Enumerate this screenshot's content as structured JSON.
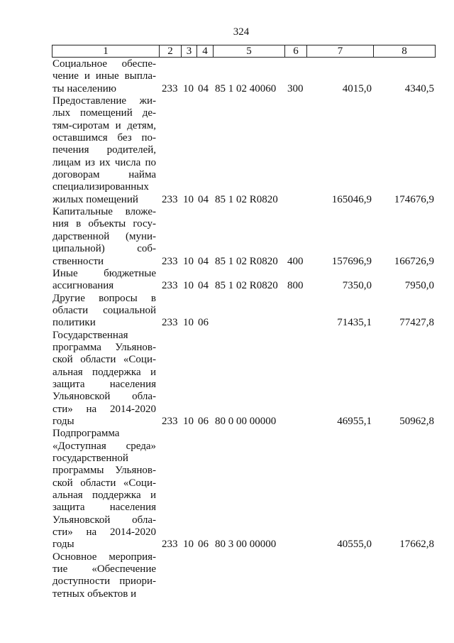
{
  "page_number": "324",
  "columns": [
    "1",
    "2",
    "3",
    "4",
    "5",
    "6",
    "7",
    "8"
  ],
  "rows": [
    {
      "lines": [
        "Социальное обеспе-",
        "чение и иные выпла-",
        "ты населению"
      ],
      "c2": "233",
      "c3": "10",
      "c4": "04",
      "c5": "85 1 02 40060",
      "c6": "300",
      "c7": "4015,0",
      "c8": "4340,5"
    },
    {
      "lines": [
        "Предоставление жи-",
        "лых помещений де-",
        "тям-сиротам и детям,",
        "оставшимся без по-",
        "печения родителей,",
        "лицам из их числа по",
        "договорам найма",
        "специализированных",
        "жилых помещений"
      ],
      "c2": "233",
      "c3": "10",
      "c4": "04",
      "c5": "85 1 02 R0820",
      "c6": "",
      "c7": "165046,9",
      "c8": "174676,9"
    },
    {
      "lines": [
        "Капитальные вложе-",
        "ния в объекты госу-",
        "дарственной (муни-",
        "ципальной) соб-",
        "ственности"
      ],
      "c2": "233",
      "c3": "10",
      "c4": "04",
      "c5": "85 1 02 R0820",
      "c6": "400",
      "c7": "157696,9",
      "c8": "166726,9"
    },
    {
      "lines": [
        "Иные бюджетные",
        "ассигнования"
      ],
      "c2": "233",
      "c3": "10",
      "c4": "04",
      "c5": "85 1 02 R0820",
      "c6": "800",
      "c7": "7350,0",
      "c8": "7950,0"
    },
    {
      "lines": [
        "Другие вопросы в",
        "области социальной",
        "политики"
      ],
      "c2": "233",
      "c3": "10",
      "c4": "06",
      "c5": "",
      "c6": "",
      "c7": "71435,1",
      "c8": "77427,8"
    },
    {
      "lines": [
        "Государственная",
        "программа Ульянов-",
        "ской области «Соци-",
        "альная поддержка и",
        "защита населения",
        "Ульяновской обла-",
        "сти» на 2014-2020",
        "годы"
      ],
      "c2": "233",
      "c3": "10",
      "c4": "06",
      "c5": "80 0 00 00000",
      "c6": "",
      "c7": "46955,1",
      "c8": "50962,8"
    },
    {
      "lines": [
        "Подпрограмма",
        "«Доступная среда»",
        "государственной",
        "программы Ульянов-",
        "ской области «Соци-",
        "альная поддержка и",
        "защита населения",
        "Ульяновской обла-",
        "сти» на 2014-2020",
        "годы"
      ],
      "c2": "233",
      "c3": "10",
      "c4": "06",
      "c5": "80 3 00 00000",
      "c6": "",
      "c7": "40555,0",
      "c8": "17662,8"
    },
    {
      "lines": [
        "Основное мероприя-",
        "тие «Обеспечение",
        "доступности приори-",
        "тетных объектов и"
      ],
      "c2": "",
      "c3": "",
      "c4": "",
      "c5": "",
      "c6": "",
      "c7": "",
      "c8": ""
    }
  ]
}
